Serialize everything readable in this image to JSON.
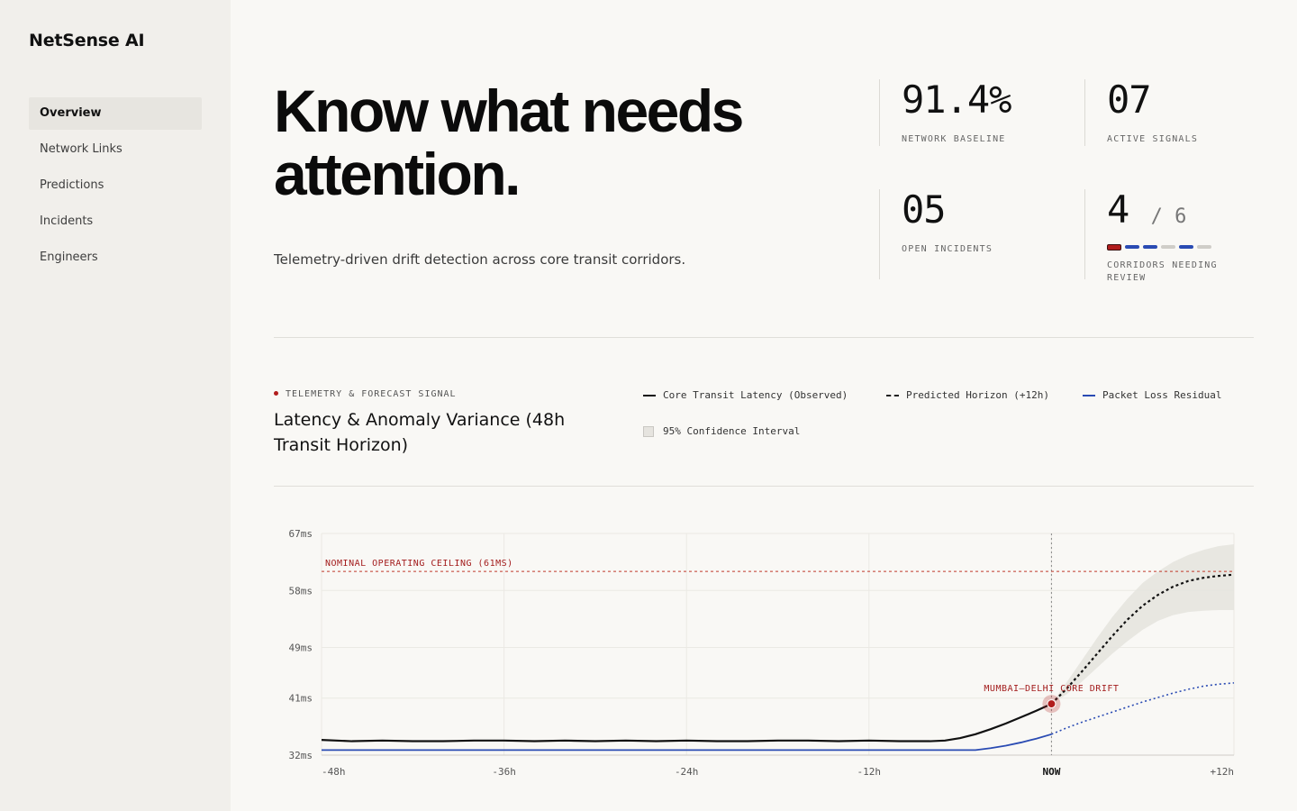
{
  "app": {
    "brand": "NetSense AI"
  },
  "nav": {
    "items": [
      {
        "label": "Overview",
        "active": true
      },
      {
        "label": "Network Links"
      },
      {
        "label": "Predictions"
      },
      {
        "label": "Incidents"
      },
      {
        "label": "Engineers"
      }
    ]
  },
  "hero": {
    "title": "Know what needs attention.",
    "subtitle": "Telemetry-driven drift detection across core transit corridors."
  },
  "stats": [
    {
      "value": "91.4%",
      "label": "NETWORK BASELINE"
    },
    {
      "value": "07",
      "label": "ACTIVE SIGNALS"
    },
    {
      "value": "05",
      "label": "OPEN INCIDENTS"
    },
    {
      "value": "4",
      "suffix": "/ 6",
      "label": "CORRIDORS NEEDING REVIEW",
      "segments": [
        "critical",
        "review",
        "review",
        "normal",
        "review",
        "normal"
      ]
    }
  ],
  "chart_section": {
    "kicker": "TELEMETRY & FORECAST SIGNAL",
    "title": "Latency & Anomaly Variance (48h Transit Horizon)",
    "legend": [
      "Core Transit Latency (Observed)",
      "Predicted Horizon (+12h)",
      "Packet Loss Residual",
      "95% Confidence Interval"
    ]
  },
  "colors": {
    "accent": "#b11d1d",
    "blue": "#2a4bb3",
    "ink": "#111111"
  },
  "chart_data": {
    "type": "line",
    "x_ticks": [
      "-48h",
      "-36h",
      "-24h",
      "-12h",
      "NOW",
      "+12h"
    ],
    "x_tick_values": [
      -48,
      -36,
      -24,
      -12,
      0,
      12
    ],
    "xlim": [
      -48,
      12
    ],
    "y_ticks": [
      "67ms",
      "58ms",
      "49ms",
      "41ms",
      "32ms"
    ],
    "y_tick_values": [
      67,
      58,
      49,
      41,
      32
    ],
    "ylim": [
      32,
      67
    ],
    "threshold": {
      "value": 61,
      "label": "NOMINAL OPERATING CEILING (61MS)"
    },
    "annotation": {
      "label": "MUMBAI–DELHI CORE DRIFT",
      "x": 0,
      "y": 40.1
    },
    "series": [
      {
        "name": "Core Transit Latency (Observed)",
        "x": [
          -48,
          -46,
          -44,
          -42,
          -40,
          -38,
          -36,
          -34,
          -32,
          -30,
          -28,
          -26,
          -24,
          -22,
          -20,
          -18,
          -16,
          -14,
          -12,
          -10,
          -8,
          -7,
          -6,
          -5,
          -4,
          -3,
          -2,
          -1,
          0
        ],
        "y": [
          34.4,
          34.2,
          34.3,
          34.2,
          34.2,
          34.3,
          34.3,
          34.2,
          34.3,
          34.2,
          34.3,
          34.2,
          34.3,
          34.2,
          34.2,
          34.3,
          34.3,
          34.2,
          34.3,
          34.2,
          34.2,
          34.3,
          34.7,
          35.3,
          36.1,
          37.0,
          38.0,
          39.0,
          40.1
        ]
      },
      {
        "name": "Predicted Horizon (+12h)",
        "x": [
          0,
          1,
          2,
          3,
          4,
          5,
          6,
          7,
          8,
          9,
          10,
          11,
          12
        ],
        "y": [
          40.1,
          42.5,
          45.2,
          48.0,
          50.8,
          53.4,
          55.6,
          57.3,
          58.6,
          59.5,
          60.0,
          60.3,
          60.5
        ]
      },
      {
        "name": "Packet Loss Residual",
        "x": [
          -48,
          -40,
          -30,
          -20,
          -10,
          -5,
          -4,
          -3,
          -2,
          -1,
          0
        ],
        "y": [
          32.8,
          32.8,
          32.8,
          32.8,
          32.8,
          32.8,
          33.1,
          33.5,
          34.0,
          34.6,
          35.3
        ]
      },
      {
        "name": "Packet Loss Residual (forecast)",
        "x": [
          0,
          1,
          2,
          3,
          4,
          5,
          6,
          7,
          8,
          9,
          10,
          11,
          12
        ],
        "y": [
          35.3,
          36.3,
          37.2,
          38.0,
          38.8,
          39.6,
          40.4,
          41.1,
          41.8,
          42.4,
          42.9,
          43.2,
          43.4
        ]
      }
    ],
    "confidence_band": {
      "x": [
        0,
        1,
        2,
        3,
        4,
        5,
        6,
        7,
        8,
        9,
        10,
        11,
        12
      ],
      "upper": [
        40.1,
        43.5,
        47.0,
        50.5,
        53.8,
        56.7,
        59.2,
        61.0,
        62.5,
        63.6,
        64.4,
        65.0,
        65.3
      ],
      "lower": [
        40.1,
        41.6,
        43.6,
        45.8,
        48.0,
        50.0,
        51.8,
        53.2,
        54.1,
        54.6,
        54.8,
        54.9,
        54.9
      ]
    }
  }
}
